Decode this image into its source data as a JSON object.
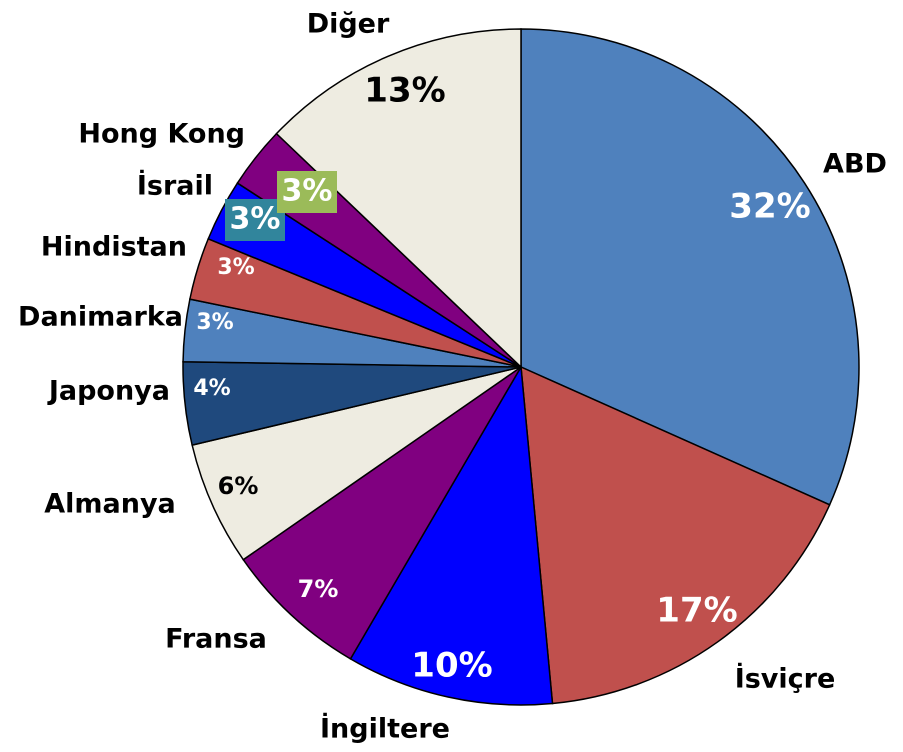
{
  "chart_data": {
    "type": "pie",
    "categories": [
      "ABD",
      "İsviçre",
      "İngiltere",
      "Fransa",
      "Almanya",
      "Japonya",
      "Danimarka",
      "Hindistan",
      "İsrail",
      "Hong Kong",
      "Diğer"
    ],
    "values": [
      32,
      17,
      10,
      7,
      6,
      4,
      3,
      3,
      3,
      3,
      13
    ],
    "value_labels": [
      "32%",
      "17%",
      "10%",
      "7%",
      "6%",
      "4%",
      "3%",
      "3%",
      "3%",
      "3%",
      "13%"
    ],
    "colors": [
      "#4f81bd",
      "#c0504d",
      "#0000ff",
      "#800080",
      "#eeece1",
      "#1f497d",
      "#4f81bd",
      "#c0504d",
      "#0000ff",
      "#800080",
      "#eeece1"
    ]
  }
}
